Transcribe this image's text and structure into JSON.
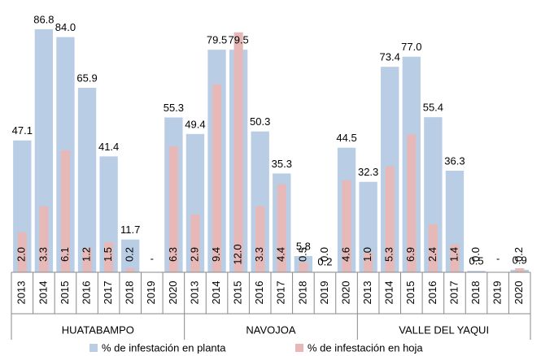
{
  "chart_data": {
    "type": "bar",
    "categories": [
      "2013",
      "2014",
      "2015",
      "2016",
      "2017",
      "2018",
      "2019",
      "2020",
      "2013",
      "2014",
      "2015",
      "2016",
      "2017",
      "2018",
      "2019",
      "2020",
      "2013",
      "2014",
      "2015",
      "2016",
      "2017",
      "2018",
      "2019",
      "2020"
    ],
    "groups": [
      "HUATABAMPO",
      "NAVOJOA",
      "VALLE DEL YAQUI"
    ],
    "ylim": [
      0,
      90
    ],
    "y2lim": [
      0,
      12.6
    ],
    "series": [
      {
        "name": "% de infestación en planta",
        "color": "#b9cde5",
        "values": [
          47.1,
          86.8,
          84.0,
          65.9,
          41.4,
          11.7,
          null,
          55.3,
          49.4,
          79.5,
          79.5,
          50.3,
          35.3,
          5.8,
          0.2,
          44.5,
          32.3,
          73.4,
          77.0,
          55.4,
          36.3,
          0.5,
          null,
          0.9
        ],
        "value_labels": [
          "47.1",
          "86.8",
          "84.0",
          "65.9",
          "41.4",
          "11.7",
          "-",
          "55.3",
          "49.4",
          "79.5",
          "79.5",
          "50.3",
          "35.3",
          "5.8",
          "0.2",
          "44.5",
          "32.3",
          "73.4",
          "77.0",
          "55.4",
          "36.3",
          "0.5",
          "-",
          "0.9"
        ]
      },
      {
        "name": "% de infestación en hoja",
        "color": "#e6b9b8",
        "axis": "y2",
        "values": [
          2.0,
          3.3,
          6.1,
          1.2,
          1.5,
          0.2,
          null,
          6.3,
          2.9,
          9.4,
          12.0,
          3.3,
          4.4,
          0.5,
          0.0,
          4.6,
          1.0,
          5.3,
          6.9,
          2.4,
          1.4,
          0.0,
          null,
          0.2
        ],
        "value_labels": [
          "2.0",
          "3.3",
          "6.1",
          "1.2",
          "1.5",
          "0.2",
          null,
          "6.3",
          "2.9",
          "9.4",
          "12.0",
          "3.3",
          "4.4",
          "0.5",
          "0.0",
          "4.6",
          "1.0",
          "5.3",
          "6.9",
          "2.4",
          "1.4",
          "0.0",
          null,
          "0.2"
        ]
      }
    ]
  }
}
